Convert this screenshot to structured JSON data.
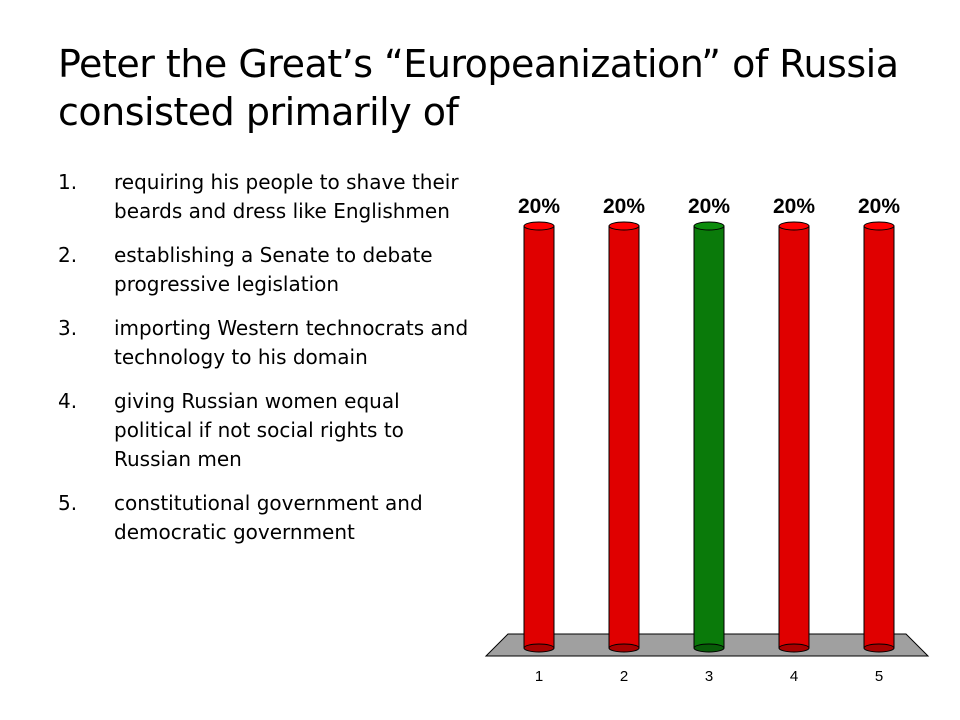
{
  "slide": {
    "title_line1": "Peter the Great’s “Europeanization” of Russia",
    "title_line2": "consisted primarily of"
  },
  "answers": [
    {
      "number": "1.",
      "text": "requiring his people to shave their beards and dress like Englishmen"
    },
    {
      "number": "2.",
      "text": "establishing a Senate to debate progressive legislation"
    },
    {
      "number": "3.",
      "text": "importing Western technocrats and technology to his domain"
    },
    {
      "number": "4.",
      "text": "giving Russian women equal political if not social rights to Russian men"
    },
    {
      "number": "5.",
      "text": "constitutional government and democratic government"
    }
  ],
  "chart_data": {
    "type": "bar",
    "categories": [
      "1",
      "2",
      "3",
      "4",
      "5"
    ],
    "values": [
      20,
      20,
      20,
      20,
      20
    ],
    "data_labels": [
      "20%",
      "20%",
      "20%",
      "20%",
      "20%"
    ],
    "ylim": [
      0,
      20
    ],
    "bar_colors": [
      "#e00000",
      "#e00000",
      "#0a7a0a",
      "#e00000",
      "#e00000"
    ],
    "highlighted_category": "3",
    "floor_color": "#a0a0a0",
    "gridlines": false,
    "legend": "none"
  }
}
